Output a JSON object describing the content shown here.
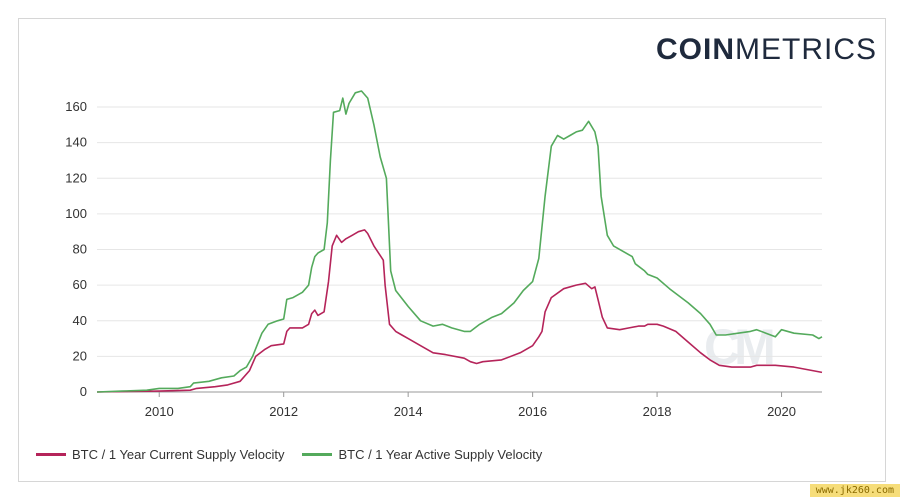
{
  "logo": {
    "bold": "COIN",
    "light": "METRICS"
  },
  "watermark": "CM",
  "site_mark": "www.jk260.com",
  "colors": {
    "current": "#b5245a",
    "active": "#54aa5c",
    "grid": "#e6e6e6",
    "text": "#333333"
  },
  "chart_data": {
    "type": "line",
    "title": "",
    "xlabel": "",
    "ylabel": "",
    "xlim": [
      2009,
      2020.65
    ],
    "ylim": [
      0,
      160
    ],
    "xticks": [
      2010,
      2012,
      2014,
      2016,
      2018,
      2020
    ],
    "yticks": [
      0,
      20,
      40,
      60,
      80,
      100,
      120,
      140,
      160
    ],
    "legend_position": "bottom-left",
    "series": [
      {
        "name": "BTC / 1 Year Current Supply Velocity",
        "color": "#b5245a",
        "points": [
          [
            2009.0,
            0
          ],
          [
            2009.5,
            0.3
          ],
          [
            2010.0,
            0.5
          ],
          [
            2010.5,
            1
          ],
          [
            2010.6,
            2
          ],
          [
            2010.9,
            3
          ],
          [
            2011.1,
            4
          ],
          [
            2011.3,
            6
          ],
          [
            2011.45,
            12
          ],
          [
            2011.55,
            20
          ],
          [
            2011.7,
            24
          ],
          [
            2011.8,
            26
          ],
          [
            2012.0,
            27
          ],
          [
            2012.05,
            34
          ],
          [
            2012.1,
            36
          ],
          [
            2012.3,
            36
          ],
          [
            2012.4,
            38
          ],
          [
            2012.45,
            44
          ],
          [
            2012.5,
            46
          ],
          [
            2012.55,
            43
          ],
          [
            2012.65,
            45
          ],
          [
            2012.72,
            62
          ],
          [
            2012.78,
            82
          ],
          [
            2012.85,
            88
          ],
          [
            2012.93,
            84
          ],
          [
            2013.0,
            86
          ],
          [
            2013.1,
            88
          ],
          [
            2013.2,
            90
          ],
          [
            2013.3,
            91
          ],
          [
            2013.35,
            89
          ],
          [
            2013.45,
            82
          ],
          [
            2013.6,
            74
          ],
          [
            2013.63,
            60
          ],
          [
            2013.7,
            38
          ],
          [
            2013.8,
            34
          ],
          [
            2013.9,
            32
          ],
          [
            2014.0,
            30
          ],
          [
            2014.2,
            26
          ],
          [
            2014.4,
            22
          ],
          [
            2014.6,
            21
          ],
          [
            2014.9,
            19
          ],
          [
            2015.0,
            17
          ],
          [
            2015.1,
            16
          ],
          [
            2015.2,
            17
          ],
          [
            2015.5,
            18
          ],
          [
            2015.8,
            22
          ],
          [
            2016.0,
            26
          ],
          [
            2016.1,
            31
          ],
          [
            2016.15,
            34
          ],
          [
            2016.2,
            45
          ],
          [
            2016.3,
            53
          ],
          [
            2016.5,
            58
          ],
          [
            2016.7,
            60
          ],
          [
            2016.85,
            61
          ],
          [
            2016.95,
            58
          ],
          [
            2017.0,
            59
          ],
          [
            2017.05,
            52
          ],
          [
            2017.12,
            42
          ],
          [
            2017.2,
            36
          ],
          [
            2017.4,
            35
          ],
          [
            2017.55,
            36
          ],
          [
            2017.7,
            37
          ],
          [
            2017.8,
            37
          ],
          [
            2017.85,
            38
          ],
          [
            2018.0,
            38
          ],
          [
            2018.1,
            37
          ],
          [
            2018.3,
            34
          ],
          [
            2018.5,
            28
          ],
          [
            2018.7,
            22
          ],
          [
            2018.85,
            18
          ],
          [
            2019.0,
            15
          ],
          [
            2019.2,
            14
          ],
          [
            2019.5,
            14
          ],
          [
            2019.6,
            15
          ],
          [
            2019.9,
            15
          ],
          [
            2020.2,
            14
          ],
          [
            2020.5,
            12
          ],
          [
            2020.65,
            11
          ]
        ]
      },
      {
        "name": "BTC / 1 Year Active Supply Velocity",
        "color": "#54aa5c",
        "points": [
          [
            2009.0,
            0
          ],
          [
            2009.4,
            0.5
          ],
          [
            2009.8,
            1
          ],
          [
            2010.0,
            2
          ],
          [
            2010.3,
            2
          ],
          [
            2010.5,
            3
          ],
          [
            2010.55,
            5
          ],
          [
            2010.8,
            6
          ],
          [
            2011.0,
            8
          ],
          [
            2011.2,
            9
          ],
          [
            2011.3,
            12
          ],
          [
            2011.4,
            14
          ],
          [
            2011.5,
            20
          ],
          [
            2011.65,
            33
          ],
          [
            2011.75,
            38
          ],
          [
            2011.9,
            40
          ],
          [
            2012.0,
            41
          ],
          [
            2012.05,
            52
          ],
          [
            2012.15,
            53
          ],
          [
            2012.3,
            56
          ],
          [
            2012.4,
            60
          ],
          [
            2012.45,
            70
          ],
          [
            2012.5,
            76
          ],
          [
            2012.55,
            78
          ],
          [
            2012.65,
            80
          ],
          [
            2012.7,
            95
          ],
          [
            2012.75,
            130
          ],
          [
            2012.8,
            157
          ],
          [
            2012.9,
            158
          ],
          [
            2012.95,
            165
          ],
          [
            2013.0,
            156
          ],
          [
            2013.05,
            162
          ],
          [
            2013.15,
            168
          ],
          [
            2013.25,
            169
          ],
          [
            2013.35,
            165
          ],
          [
            2013.45,
            150
          ],
          [
            2013.55,
            132
          ],
          [
            2013.65,
            120
          ],
          [
            2013.72,
            68
          ],
          [
            2013.8,
            57
          ],
          [
            2014.0,
            48
          ],
          [
            2014.2,
            40
          ],
          [
            2014.4,
            37
          ],
          [
            2014.55,
            38
          ],
          [
            2014.7,
            36
          ],
          [
            2014.9,
            34
          ],
          [
            2015.0,
            34
          ],
          [
            2015.15,
            38
          ],
          [
            2015.35,
            42
          ],
          [
            2015.5,
            44
          ],
          [
            2015.7,
            50
          ],
          [
            2015.85,
            57
          ],
          [
            2016.0,
            62
          ],
          [
            2016.1,
            75
          ],
          [
            2016.2,
            110
          ],
          [
            2016.3,
            138
          ],
          [
            2016.4,
            144
          ],
          [
            2016.5,
            142
          ],
          [
            2016.6,
            144
          ],
          [
            2016.7,
            146
          ],
          [
            2016.8,
            147
          ],
          [
            2016.9,
            152
          ],
          [
            2017.0,
            146
          ],
          [
            2017.05,
            138
          ],
          [
            2017.1,
            110
          ],
          [
            2017.2,
            88
          ],
          [
            2017.3,
            82
          ],
          [
            2017.5,
            78
          ],
          [
            2017.6,
            76
          ],
          [
            2017.65,
            72
          ],
          [
            2017.8,
            68
          ],
          [
            2017.85,
            66
          ],
          [
            2018.0,
            64
          ],
          [
            2018.2,
            58
          ],
          [
            2018.5,
            50
          ],
          [
            2018.7,
            44
          ],
          [
            2018.85,
            38
          ],
          [
            2018.95,
            32
          ],
          [
            2019.1,
            32
          ],
          [
            2019.3,
            33
          ],
          [
            2019.5,
            34
          ],
          [
            2019.6,
            35
          ],
          [
            2019.75,
            33
          ],
          [
            2019.9,
            31
          ],
          [
            2020.0,
            35
          ],
          [
            2020.2,
            33
          ],
          [
            2020.5,
            32
          ],
          [
            2020.6,
            30
          ],
          [
            2020.65,
            31
          ]
        ]
      }
    ]
  }
}
